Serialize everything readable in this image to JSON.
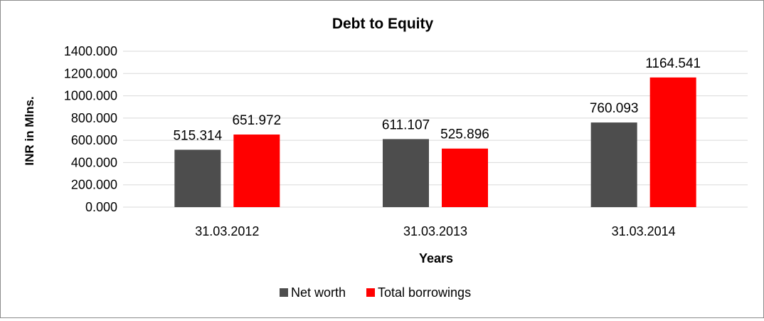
{
  "chart_data": {
    "type": "bar",
    "title": "Debt to Equity",
    "xlabel": "Years",
    "ylabel": "INR in Mlns.",
    "categories": [
      "31.03.2012",
      "31.03.2013",
      "31.03.2014"
    ],
    "series": [
      {
        "name": "Net worth",
        "values": [
          515.314,
          611.107,
          760.093
        ],
        "labels": [
          "515.314",
          "611.107",
          "760.093"
        ],
        "color": "#4d4d4d"
      },
      {
        "name": "Total borrowings",
        "values": [
          651.972,
          525.896,
          1164.541
        ],
        "labels": [
          "651.972",
          "525.896",
          "1164.541"
        ],
        "color": "#ff0000"
      }
    ],
    "ylim": [
      0,
      1400
    ],
    "yticks": [
      "0.000",
      "200.000",
      "400.000",
      "600.000",
      "800.000",
      "1000.000",
      "1200.000",
      "1400.000"
    ],
    "grid": true,
    "legend_position": "bottom"
  }
}
